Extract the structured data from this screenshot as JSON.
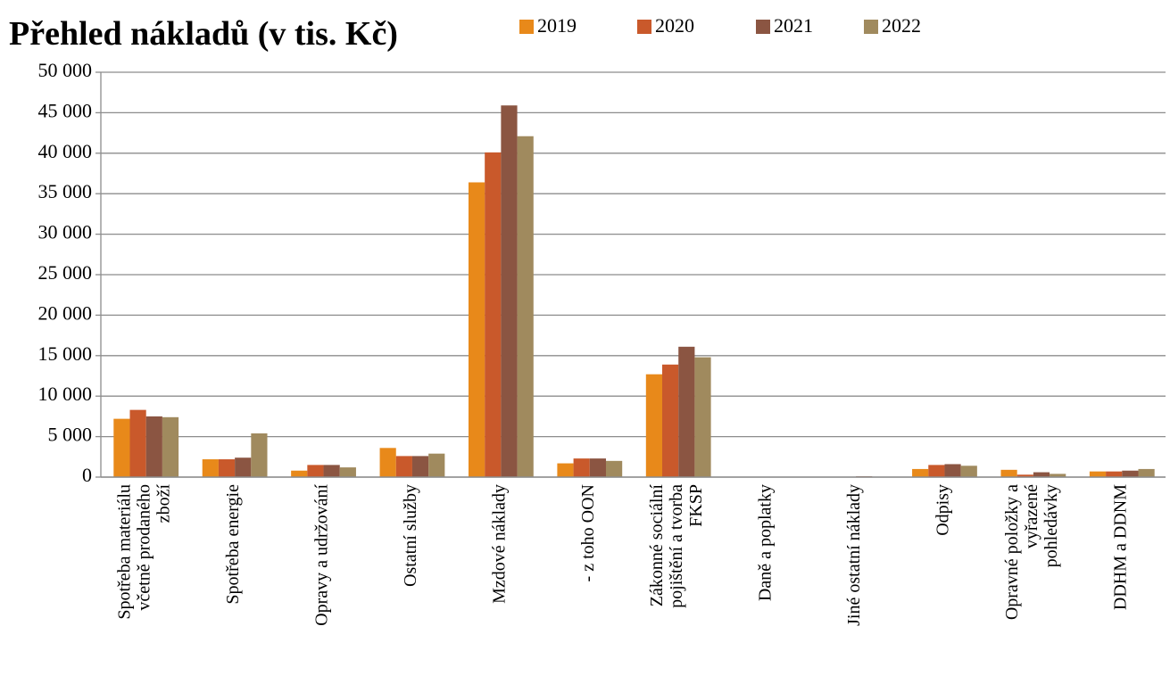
{
  "chart_data": {
    "type": "bar",
    "title": "Přehled nákladů (v tis. Kč)",
    "categories": [
      "Spotřeba materiálu\nvčetně prodaného\nzboží",
      "Spotřeba energie",
      "Opravy a udržování",
      "Ostatní služby",
      "Mzdové náklady",
      "- z toho OON",
      "Zákonné sociální\npojištění a tvorba\nFKSP",
      "Daně a poplatky",
      "Jiné ostatní náklady",
      "Odpisy",
      "Opravné položky a\nvyřazené\npohledávky",
      "DDHM a DDNM"
    ],
    "series": [
      {
        "name": "2019",
        "color": "#e8891a",
        "values": [
          7200,
          2200,
          800,
          3600,
          36400,
          1700,
          12700,
          0,
          0,
          1000,
          900,
          700
        ]
      },
      {
        "name": "2020",
        "color": "#c9592b",
        "values": [
          8300,
          2200,
          1500,
          2600,
          40100,
          2300,
          13900,
          0,
          0,
          1500,
          300,
          700
        ]
      },
      {
        "name": "2021",
        "color": "#8b5542",
        "values": [
          7500,
          2400,
          1500,
          2600,
          45900,
          2300,
          16100,
          0,
          100,
          1600,
          600,
          800
        ]
      },
      {
        "name": "2022",
        "color": "#a08a5e",
        "values": [
          7400,
          5400,
          1200,
          2900,
          42100,
          2000,
          14800,
          0,
          0,
          1400,
          400,
          1000
        ]
      }
    ],
    "ylim": [
      0,
      50000
    ],
    "yticks": [
      0,
      {
        "value": 5000,
        "label": "5 000"
      },
      {
        "value": 10000,
        "label": "10 000"
      },
      {
        "value": 15000,
        "label": "15 000"
      },
      {
        "value": 20000,
        "label": "20 000"
      },
      {
        "value": 25000,
        "label": "25 000"
      },
      {
        "value": 30000,
        "label": "30 000"
      },
      {
        "value": 35000,
        "label": "35 000"
      },
      {
        "value": 40000,
        "label": "40 000"
      },
      {
        "value": 45000,
        "label": "45 000"
      },
      {
        "value": 50000,
        "label": "50 000"
      }
    ],
    "grid": true,
    "legend": "top"
  }
}
